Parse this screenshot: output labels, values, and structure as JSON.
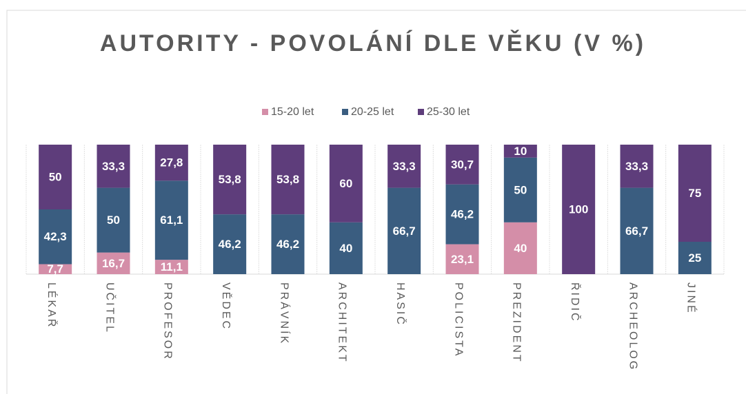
{
  "chart_data": {
    "type": "stacked_bar",
    "title": "AUTORITY - POVOLÁNÍ DLE VĚKU (V %)",
    "categories": [
      "LÉKAŘ",
      "UČITEL",
      "PROFESOR",
      "VĚDEC",
      "PRÁVNÍK",
      "ARCHITEKT",
      "HASIČ",
      "POLICISTA",
      "PREZIDENT",
      "ŘIDIČ",
      "ARCHEOLOG",
      "JINÉ"
    ],
    "ylim": [
      0,
      100
    ],
    "series": [
      {
        "name": "15-20 let",
        "color": "#d48ea8",
        "values": [
          7.7,
          16.7,
          11.1,
          null,
          null,
          null,
          null,
          23.1,
          40,
          null,
          null,
          null
        ],
        "value_labels": [
          "7,7",
          "16,7",
          "11,1",
          null,
          null,
          null,
          null,
          "23,1",
          "40",
          null,
          null,
          null
        ]
      },
      {
        "name": "20-25 let",
        "color": "#3a5d80",
        "values": [
          42.3,
          50,
          61.1,
          46.2,
          46.2,
          40,
          66.7,
          46.2,
          50,
          null,
          66.7,
          25
        ],
        "value_labels": [
          "42,3",
          "50",
          "61,1",
          "46,2",
          "46,2",
          "40",
          "66,7",
          "46,2",
          "50",
          null,
          "66,7",
          "25"
        ]
      },
      {
        "name": "25-30 let",
        "color": "#5e3d7b",
        "values": [
          50,
          33.3,
          27.8,
          53.8,
          53.8,
          60,
          33.3,
          30.7,
          10,
          100,
          33.3,
          75
        ],
        "value_labels": [
          "50",
          "33,3",
          "27,8",
          "53,8",
          "53,8",
          "60",
          "33,3",
          "30,7",
          "10",
          "100",
          "33,3",
          "75"
        ]
      }
    ]
  }
}
